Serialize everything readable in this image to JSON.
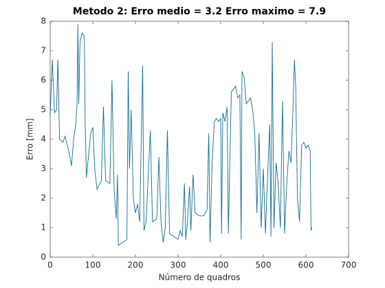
{
  "chart_data": {
    "type": "line",
    "title": "Metodo 2: Erro medio = 3.2 Erro maximo = 7.9",
    "xlabel": "Número de quadros",
    "ylabel": "Erro [mm]",
    "xlim": [
      0,
      700
    ],
    "ylim": [
      0,
      8
    ],
    "xticks": [
      0,
      100,
      200,
      300,
      400,
      500,
      600,
      700
    ],
    "yticks": [
      0,
      1,
      2,
      3,
      4,
      5,
      6,
      7,
      8
    ],
    "series": [
      {
        "color": "#0b6a94",
        "x": [
          0,
          5,
          10,
          15,
          18,
          22,
          30,
          35,
          45,
          50,
          55,
          60,
          63,
          65,
          67,
          70,
          75,
          80,
          82,
          85,
          95,
          100,
          105,
          110,
          120,
          125,
          130,
          140,
          145,
          150,
          155,
          158,
          160,
          170,
          180,
          183,
          186,
          190,
          195,
          200,
          205,
          210,
          217,
          220,
          225,
          235,
          240,
          250,
          255,
          260,
          265,
          270,
          275,
          280,
          290,
          300,
          305,
          310,
          315,
          318,
          322,
          327,
          330,
          335,
          340,
          350,
          360,
          368,
          372,
          375,
          380,
          385,
          390,
          395,
          400,
          402,
          405,
          410,
          415,
          418,
          425,
          435,
          440,
          445,
          448,
          450,
          455,
          460,
          465,
          470,
          475,
          480,
          485,
          490,
          495,
          500,
          505,
          510,
          515,
          518,
          521,
          525,
          530,
          535,
          540,
          545,
          550,
          555,
          560,
          565,
          570,
          573,
          576,
          580,
          585,
          590,
          595,
          600,
          605,
          610,
          612,
          614
        ],
        "values": [
          4.8,
          6.7,
          4.9,
          5.0,
          6.7,
          4.0,
          3.9,
          4.1,
          3.5,
          3.1,
          4.0,
          4.5,
          5.2,
          7.9,
          5.2,
          7.3,
          7.6,
          7.5,
          4.6,
          2.7,
          4.2,
          4.4,
          2.9,
          2.3,
          2.6,
          5.1,
          2.6,
          2.5,
          6.0,
          2.3,
          1.3,
          2.8,
          0.4,
          0.5,
          0.6,
          6.3,
          3.0,
          5.0,
          2.0,
          1.5,
          1.8,
          1.2,
          6.5,
          0.9,
          1.2,
          4.3,
          1.2,
          1.3,
          3.4,
          1.2,
          0.5,
          1.0,
          4.3,
          0.8,
          0.7,
          0.6,
          0.9,
          0.7,
          2.5,
          0.6,
          1.2,
          2.4,
          0.9,
          2.8,
          1.5,
          1.4,
          1.4,
          1.6,
          4.2,
          0.5,
          3.2,
          4.6,
          4.7,
          4.6,
          4.7,
          0.8,
          4.9,
          4.6,
          5.1,
          0.8,
          5.6,
          5.8,
          5.4,
          5.5,
          0.6,
          6.3,
          6.1,
          5.2,
          5.3,
          5.4,
          5.0,
          4.2,
          1.5,
          4.2,
          1.0,
          3.0,
          0.8,
          2.7,
          4.5,
          0.7,
          7.3,
          1.0,
          3.2,
          2.5,
          1.0,
          5.3,
          0.8,
          2.5,
          3.6,
          3.2,
          5.2,
          6.7,
          5.8,
          2.0,
          1.2,
          3.8,
          3.9,
          3.7,
          3.8,
          3.6,
          0.9,
          1.0
        ]
      }
    ]
  }
}
